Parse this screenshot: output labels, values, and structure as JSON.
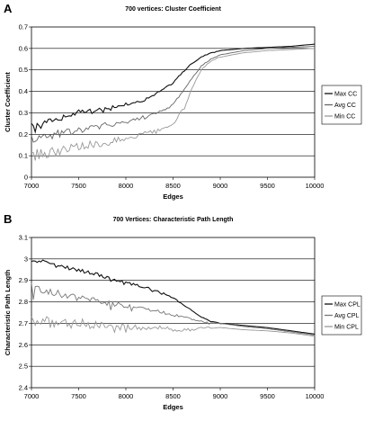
{
  "chart_data": [
    {
      "panel_label": "A",
      "type": "line",
      "title": "700 vertices: Cluster Coefficient",
      "xlabel": "Edges",
      "ylabel": "Cluster Coefficient",
      "xlim": [
        7000,
        10000
      ],
      "ylim": [
        0,
        0.7
      ],
      "xticks": [
        "7000",
        "7500",
        "8000",
        "8500",
        "9000",
        "9500",
        "10000"
      ],
      "yticks": [
        "0",
        "0.1",
        "0.2",
        "0.3",
        "0.4",
        "0.5",
        "0.6",
        "0.7"
      ],
      "grid": "horizontal",
      "legend_position": "right",
      "x": [
        7000,
        7250,
        7500,
        7750,
        8000,
        8200,
        8400,
        8500,
        8600,
        8700,
        8800,
        8900,
        9000,
        9250,
        9500,
        9750,
        10000
      ],
      "series": [
        {
          "name": "Max CC",
          "color": "#111111",
          "values": [
            0.24,
            0.27,
            0.3,
            0.32,
            0.34,
            0.36,
            0.41,
            0.44,
            0.49,
            0.53,
            0.56,
            0.58,
            0.59,
            0.6,
            0.605,
            0.61,
            0.62
          ]
        },
        {
          "name": "Avg CC",
          "color": "#666666",
          "values": [
            0.18,
            0.2,
            0.22,
            0.24,
            0.26,
            0.28,
            0.31,
            0.34,
            0.4,
            0.46,
            0.52,
            0.55,
            0.57,
            0.59,
            0.6,
            0.605,
            0.61
          ]
        },
        {
          "name": "Min CC",
          "color": "#999999",
          "values": [
            0.1,
            0.12,
            0.14,
            0.16,
            0.18,
            0.2,
            0.22,
            0.25,
            0.31,
            0.41,
            0.5,
            0.54,
            0.56,
            0.58,
            0.59,
            0.595,
            0.6
          ]
        }
      ]
    },
    {
      "panel_label": "B",
      "type": "line",
      "title": "700 Vertices: Characteristic Path Length",
      "xlabel": "Edges",
      "ylabel": "Characteristic Path Length",
      "xlim": [
        7000,
        10000
      ],
      "ylim": [
        2.4,
        3.1
      ],
      "xticks": [
        "7000",
        "7500",
        "8000",
        "8500",
        "9000",
        "9500",
        "10000"
      ],
      "yticks": [
        "2.4",
        "2.5",
        "2.6",
        "2.7",
        "2.8",
        "2.9",
        "3",
        "3.1"
      ],
      "grid": "horizontal",
      "legend_position": "right",
      "x": [
        7000,
        7250,
        7500,
        7750,
        8000,
        8200,
        8400,
        8500,
        8600,
        8700,
        8800,
        8900,
        9000,
        9250,
        9500,
        9750,
        10000
      ],
      "series": [
        {
          "name": "Max CPL",
          "color": "#111111",
          "values": [
            3.0,
            2.97,
            2.95,
            2.92,
            2.89,
            2.87,
            2.84,
            2.82,
            2.79,
            2.76,
            2.73,
            2.71,
            2.7,
            2.69,
            2.68,
            2.665,
            2.65
          ]
        },
        {
          "name": "Avg CPL",
          "color": "#777777",
          "values": [
            2.86,
            2.84,
            2.82,
            2.8,
            2.78,
            2.77,
            2.75,
            2.74,
            2.73,
            2.72,
            2.71,
            2.7,
            2.7,
            2.685,
            2.675,
            2.66,
            2.645
          ]
        },
        {
          "name": "Min CPL",
          "color": "#999999",
          "values": [
            2.71,
            2.7,
            2.7,
            2.69,
            2.68,
            2.68,
            2.68,
            2.67,
            2.67,
            2.67,
            2.68,
            2.68,
            2.68,
            2.67,
            2.665,
            2.655,
            2.64
          ]
        }
      ]
    }
  ]
}
